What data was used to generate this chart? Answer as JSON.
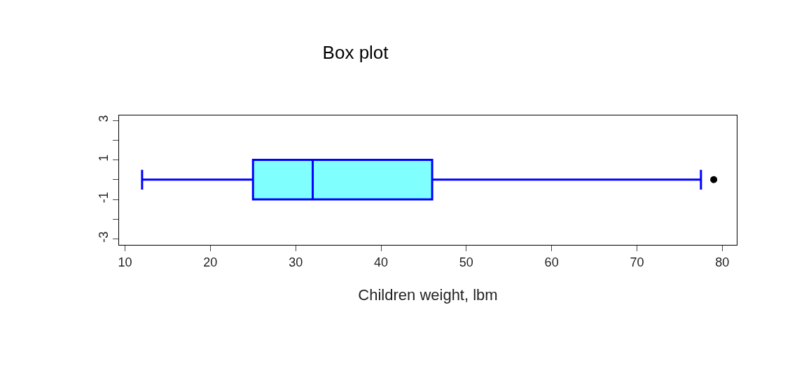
{
  "chart_data": {
    "type": "box",
    "title": "Box plot",
    "xlabel": "Children weight, lbm",
    "orientation": "horizontal",
    "series": [
      {
        "color": "#80ffff",
        "boxes": [
          {
            "low": 12,
            "q1": 25,
            "median": 32,
            "q3": 46,
            "high": 77.5,
            "outliers": [
              79
            ]
          }
        ]
      }
    ],
    "xlim": [
      9.3,
      81.7
    ],
    "xticks": [
      10,
      20,
      30,
      40,
      50,
      60,
      70,
      80
    ],
    "annotations": [
      "3",
      "1",
      "-1",
      "-3"
    ]
  }
}
